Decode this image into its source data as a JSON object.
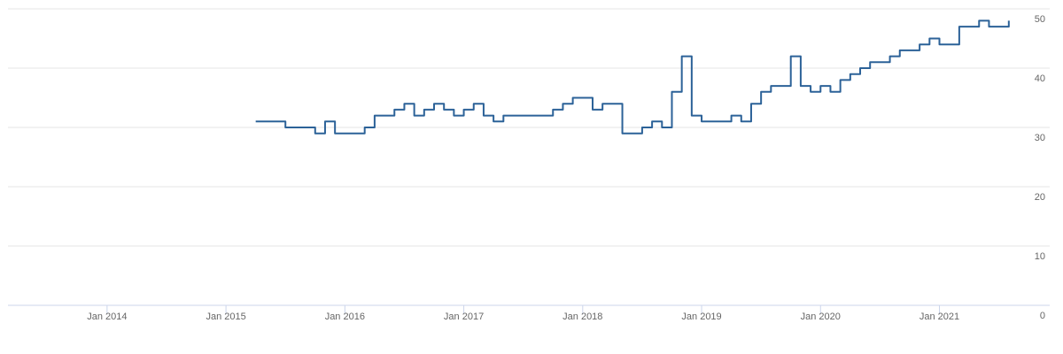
{
  "chart_data": {
    "type": "line",
    "step": true,
    "x": [
      "2015-04",
      "2015-05",
      "2015-06",
      "2015-07",
      "2015-08",
      "2015-09",
      "2015-10",
      "2015-11",
      "2015-12",
      "2016-01",
      "2016-02",
      "2016-03",
      "2016-04",
      "2016-05",
      "2016-06",
      "2016-07",
      "2016-08",
      "2016-09",
      "2016-10",
      "2016-11",
      "2016-12",
      "2017-01",
      "2017-02",
      "2017-03",
      "2017-04",
      "2017-05",
      "2017-06",
      "2017-07",
      "2017-08",
      "2017-09",
      "2017-10",
      "2017-11",
      "2017-12",
      "2018-01",
      "2018-02",
      "2018-03",
      "2018-04",
      "2018-05",
      "2018-06",
      "2018-07",
      "2018-08",
      "2018-09",
      "2018-10",
      "2018-11",
      "2018-12",
      "2019-01",
      "2019-02",
      "2019-03",
      "2019-04",
      "2019-05",
      "2019-06",
      "2019-07",
      "2019-08",
      "2019-09",
      "2019-10",
      "2019-11",
      "2019-12",
      "2020-01",
      "2020-02",
      "2020-03",
      "2020-04",
      "2020-05",
      "2020-06",
      "2020-07",
      "2020-08",
      "2020-09",
      "2020-10",
      "2020-11",
      "2020-12",
      "2021-01",
      "2021-02",
      "2021-03",
      "2021-04",
      "2021-05",
      "2021-06",
      "2021-07",
      "2021-08"
    ],
    "series": [
      {
        "color": "#2c6298",
        "values": [
          31,
          31,
          31,
          30,
          30,
          30,
          29,
          31,
          29,
          29,
          29,
          30,
          32,
          32,
          33,
          34,
          32,
          33,
          34,
          33,
          32,
          33,
          34,
          32,
          31,
          32,
          32,
          32,
          32,
          32,
          33,
          34,
          35,
          35,
          33,
          34,
          34,
          29,
          29,
          30,
          31,
          30,
          36,
          42,
          32,
          31,
          31,
          31,
          32,
          31,
          34,
          36,
          37,
          37,
          42,
          37,
          36,
          37,
          36,
          38,
          39,
          40,
          41,
          41,
          42,
          43,
          43,
          44,
          45,
          44,
          44,
          47,
          47,
          48,
          47,
          47,
          48
        ]
      }
    ],
    "xlim": [
      "2013-03",
      "2021-09"
    ],
    "xticks": [
      {
        "value": "2014-01",
        "label": "Jan 2014"
      },
      {
        "value": "2015-01",
        "label": "Jan 2015"
      },
      {
        "value": "2016-01",
        "label": "Jan 2016"
      },
      {
        "value": "2017-01",
        "label": "Jan 2017"
      },
      {
        "value": "2018-01",
        "label": "Jan 2018"
      },
      {
        "value": "2019-01",
        "label": "Jan 2019"
      },
      {
        "value": "2020-01",
        "label": "Jan 2020"
      },
      {
        "value": "2021-01",
        "label": "Jan 2021"
      }
    ],
    "ylim": [
      0,
      50
    ],
    "yticks": [
      0,
      10,
      20,
      30,
      40,
      50
    ],
    "grid": true
  }
}
